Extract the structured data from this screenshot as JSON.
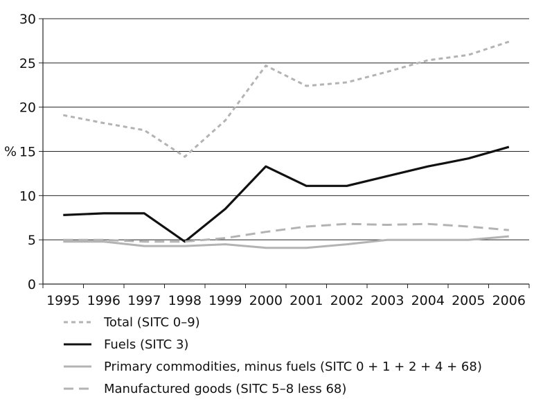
{
  "chart_data": {
    "type": "line",
    "title": "",
    "xlabel": "",
    "ylabel": "%",
    "ylim": [
      0,
      30
    ],
    "yticks": [
      0,
      5,
      10,
      15,
      20,
      25,
      30
    ],
    "grid": "horizontal",
    "legend_position": "bottom",
    "categories": [
      "1995",
      "1996",
      "1997",
      "1998",
      "1999",
      "2000",
      "2001",
      "2002",
      "2003",
      "2004",
      "2005",
      "2006"
    ],
    "series": [
      {
        "name": "Total (SITC 0–9)",
        "style": "dotted",
        "color": "#b3b3b3",
        "values": [
          19.1,
          18.2,
          17.4,
          14.4,
          18.5,
          24.7,
          22.4,
          22.8,
          24.0,
          25.3,
          25.9,
          27.4
        ]
      },
      {
        "name": "Fuels (SITC 3)",
        "style": "solid",
        "color": "#111111",
        "values": [
          7.8,
          8.0,
          8.0,
          4.8,
          8.5,
          13.3,
          11.1,
          11.1,
          12.2,
          13.3,
          14.2,
          15.5
        ]
      },
      {
        "name": "Primary commodities, minus fuels (SITC 0 + 1 + 2 + 4 + 68)",
        "style": "solid",
        "color": "#b3b3b3",
        "values": [
          4.8,
          4.8,
          4.3,
          4.3,
          4.5,
          4.1,
          4.1,
          4.5,
          5.0,
          5.0,
          5.0,
          5.4
        ]
      },
      {
        "name": "Manufactured goods (SITC 5–8 less 68)",
        "style": "dashed",
        "color": "#b3b3b3",
        "values": [
          5.0,
          5.0,
          4.8,
          4.8,
          5.2,
          5.9,
          6.5,
          6.8,
          6.7,
          6.8,
          6.5,
          6.1
        ]
      }
    ]
  }
}
